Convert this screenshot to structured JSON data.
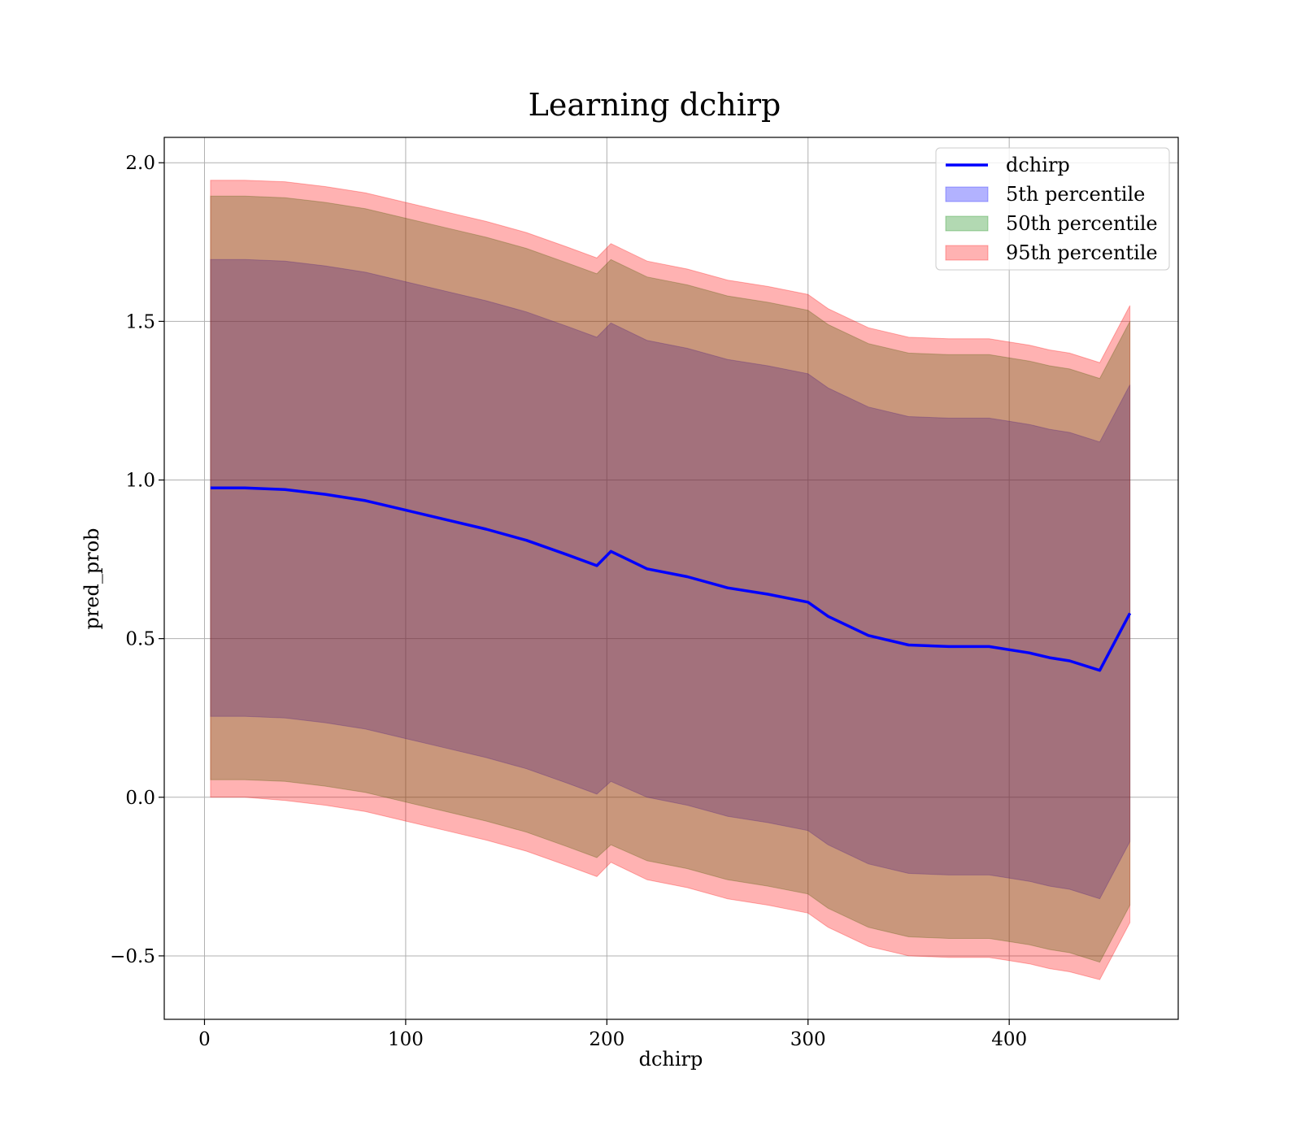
{
  "chart_data": {
    "type": "line",
    "title": "Learning dchirp",
    "xlabel": "dchirp",
    "ylabel": "pred_prob",
    "xlim": [
      -20,
      484
    ],
    "ylim": [
      -0.7,
      2.08
    ],
    "x_ticks": [
      0,
      100,
      200,
      300,
      400
    ],
    "x_tick_labels": [
      "0",
      "100",
      "200",
      "300",
      "400"
    ],
    "y_ticks": [
      -0.5,
      0.0,
      0.5,
      1.0,
      1.5,
      2.0
    ],
    "y_tick_labels": [
      "−0.5",
      "0.0",
      "0.5",
      "1.0",
      "1.5",
      "2.0"
    ],
    "grid": true,
    "legend_position": "top-right",
    "x": [
      3,
      20,
      40,
      60,
      80,
      100,
      120,
      140,
      160,
      180,
      195,
      202,
      220,
      240,
      260,
      280,
      300,
      310,
      330,
      350,
      370,
      390,
      400,
      410,
      420,
      430,
      445,
      460
    ],
    "line": {
      "name": "dchirp",
      "color": "#0000ff",
      "values": [
        0.975,
        0.975,
        0.97,
        0.955,
        0.935,
        0.905,
        0.875,
        0.845,
        0.81,
        0.765,
        0.73,
        0.775,
        0.72,
        0.695,
        0.66,
        0.64,
        0.615,
        0.57,
        0.51,
        0.48,
        0.475,
        0.475,
        0.465,
        0.455,
        0.44,
        0.43,
        0.4,
        0.58
      ]
    },
    "bands": [
      {
        "name": "5th percentile",
        "color": "#0000ff",
        "lower": [
          0.255,
          0.255,
          0.25,
          0.235,
          0.215,
          0.185,
          0.155,
          0.125,
          0.09,
          0.045,
          0.01,
          0.05,
          0.0,
          -0.025,
          -0.06,
          -0.08,
          -0.105,
          -0.15,
          -0.21,
          -0.24,
          -0.245,
          -0.245,
          -0.255,
          -0.265,
          -0.28,
          -0.29,
          -0.32,
          -0.14
        ],
        "upper": [
          1.695,
          1.695,
          1.69,
          1.675,
          1.655,
          1.625,
          1.595,
          1.565,
          1.53,
          1.485,
          1.45,
          1.495,
          1.44,
          1.415,
          1.38,
          1.36,
          1.335,
          1.29,
          1.23,
          1.2,
          1.195,
          1.195,
          1.185,
          1.175,
          1.16,
          1.15,
          1.12,
          1.3
        ]
      },
      {
        "name": "50th percentile",
        "color": "#008000",
        "lower": [
          0.055,
          0.055,
          0.05,
          0.035,
          0.015,
          -0.015,
          -0.045,
          -0.075,
          -0.11,
          -0.155,
          -0.19,
          -0.15,
          -0.2,
          -0.225,
          -0.26,
          -0.28,
          -0.305,
          -0.35,
          -0.41,
          -0.44,
          -0.445,
          -0.445,
          -0.455,
          -0.465,
          -0.48,
          -0.49,
          -0.52,
          -0.34
        ],
        "upper": [
          1.895,
          1.895,
          1.89,
          1.875,
          1.855,
          1.825,
          1.795,
          1.765,
          1.73,
          1.685,
          1.65,
          1.695,
          1.64,
          1.615,
          1.58,
          1.56,
          1.535,
          1.49,
          1.43,
          1.4,
          1.395,
          1.395,
          1.385,
          1.375,
          1.36,
          1.35,
          1.32,
          1.5
        ]
      },
      {
        "name": "95th percentile",
        "color": "#ff0000",
        "lower": [
          0.0,
          0.0,
          -0.01,
          -0.025,
          -0.045,
          -0.075,
          -0.105,
          -0.135,
          -0.17,
          -0.215,
          -0.25,
          -0.205,
          -0.26,
          -0.285,
          -0.32,
          -0.34,
          -0.365,
          -0.41,
          -0.47,
          -0.5,
          -0.505,
          -0.505,
          -0.515,
          -0.525,
          -0.54,
          -0.55,
          -0.575,
          -0.395
        ],
        "upper": [
          1.945,
          1.945,
          1.94,
          1.925,
          1.905,
          1.875,
          1.845,
          1.815,
          1.78,
          1.735,
          1.7,
          1.745,
          1.69,
          1.665,
          1.63,
          1.61,
          1.585,
          1.54,
          1.48,
          1.45,
          1.445,
          1.445,
          1.435,
          1.425,
          1.41,
          1.4,
          1.37,
          1.55
        ]
      }
    ]
  }
}
